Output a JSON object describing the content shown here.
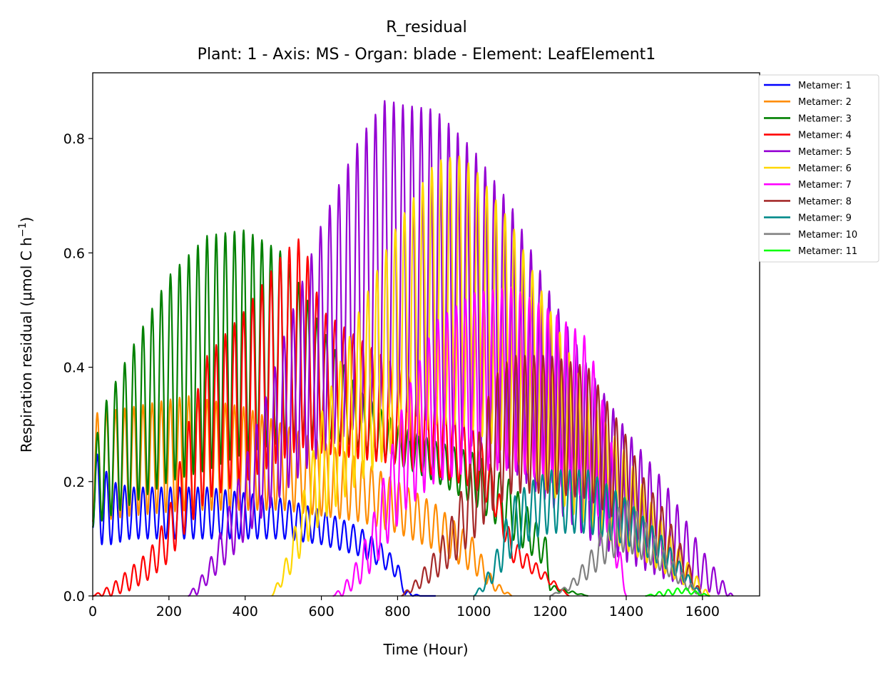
{
  "chart_data": {
    "type": "line",
    "title": "R_residual",
    "subtitle": "Plant: 1 - Axis: MS - Organ: blade - Element: LeafElement1",
    "xlabel": "Time (Hour)",
    "ylabel": "Respiration residual (µmol C h",
    "ylabel_sup": "−1",
    "ylabel_close": ")",
    "xlim": [
      0,
      1750
    ],
    "ylim": [
      0,
      0.915
    ],
    "xticks": [
      0,
      200,
      400,
      600,
      800,
      1000,
      1200,
      1400,
      1600
    ],
    "xtick_labels": [
      "0",
      "200",
      "400",
      "600",
      "800",
      "1000",
      "1200",
      "1400",
      "1600"
    ],
    "yticks": [
      0.0,
      0.2,
      0.4,
      0.6,
      0.8
    ],
    "ytick_labels": [
      "0.0",
      "0.2",
      "0.4",
      "0.6",
      "0.8"
    ],
    "grid": false,
    "legend_position": "outside-top-right",
    "period_hours": 24,
    "series": [
      {
        "name": "Metamer: 1",
        "color": "#0000ff",
        "x": [
          0,
          10,
          50,
          100,
          200,
          300,
          400,
          500,
          600,
          700,
          760,
          800,
          820,
          860,
          900
        ],
        "peak": [
          0.3,
          0.25,
          0.2,
          0.19,
          0.19,
          0.19,
          0.18,
          0.17,
          0.15,
          0.12,
          0.09,
          0.06,
          0.01,
          0.0,
          0.0
        ],
        "trough": [
          0.12,
          0.09,
          0.09,
          0.1,
          0.1,
          0.1,
          0.1,
          0.1,
          0.09,
          0.07,
          0.05,
          0.03,
          0.0,
          0.0,
          0.0
        ]
      },
      {
        "name": "Metamer: 2",
        "color": "#ff8c00",
        "x": [
          0,
          10,
          100,
          250,
          400,
          500,
          600,
          700,
          800,
          900,
          1000,
          1050,
          1100
        ],
        "peak": [
          0.31,
          0.32,
          0.33,
          0.35,
          0.33,
          0.3,
          0.27,
          0.24,
          0.2,
          0.16,
          0.1,
          0.03,
          0.0
        ],
        "trough": [
          0.13,
          0.13,
          0.14,
          0.15,
          0.15,
          0.15,
          0.14,
          0.13,
          0.11,
          0.08,
          0.04,
          0.01,
          0.0
        ]
      },
      {
        "name": "Metamer: 3",
        "color": "#008000",
        "x": [
          0,
          20,
          100,
          200,
          300,
          400,
          500,
          600,
          700,
          800,
          900,
          1000,
          1100,
          1190,
          1200,
          1300
        ],
        "peak": [
          0.23,
          0.32,
          0.43,
          0.56,
          0.63,
          0.64,
          0.6,
          0.47,
          0.36,
          0.3,
          0.27,
          0.25,
          0.2,
          0.1,
          0.02,
          0.0
        ],
        "trough": [
          0.12,
          0.13,
          0.16,
          0.2,
          0.22,
          0.25,
          0.27,
          0.28,
          0.26,
          0.23,
          0.2,
          0.16,
          0.1,
          0.05,
          0.01,
          0.0
        ]
      },
      {
        "name": "Metamer: 4",
        "color": "#ff0000",
        "x": [
          0,
          50,
          100,
          150,
          200,
          250,
          300,
          400,
          500,
          550,
          600,
          800,
          1000,
          1050,
          1100,
          1250
        ],
        "peak": [
          0.0,
          0.02,
          0.05,
          0.08,
          0.15,
          0.3,
          0.42,
          0.5,
          0.6,
          0.63,
          0.5,
          0.4,
          0.3,
          0.22,
          0.1,
          0.0
        ],
        "trough": [
          0.0,
          0.0,
          0.01,
          0.03,
          0.06,
          0.12,
          0.17,
          0.2,
          0.24,
          0.26,
          0.25,
          0.23,
          0.19,
          0.15,
          0.06,
          0.0
        ]
      },
      {
        "name": "Metamer: 5",
        "color": "#9400d3",
        "x": [
          250,
          270,
          300,
          340,
          380,
          420,
          460,
          500,
          600,
          700,
          770,
          800,
          900,
          1000,
          1100,
          1200,
          1300,
          1400,
          1500,
          1600,
          1660,
          1680
        ],
        "peak": [
          0.0,
          0.02,
          0.05,
          0.12,
          0.2,
          0.28,
          0.36,
          0.45,
          0.65,
          0.8,
          0.87,
          0.86,
          0.85,
          0.78,
          0.68,
          0.53,
          0.4,
          0.29,
          0.2,
          0.08,
          0.02,
          0.0
        ],
        "trough": [
          0.0,
          0.0,
          0.02,
          0.05,
          0.08,
          0.12,
          0.15,
          0.18,
          0.25,
          0.3,
          0.33,
          0.33,
          0.3,
          0.26,
          0.22,
          0.16,
          0.1,
          0.06,
          0.03,
          0.01,
          0.0,
          0.0
        ]
      },
      {
        "name": "Metamer: 6",
        "color": "#ffd700",
        "x": [
          470,
          500,
          530,
          560,
          600,
          700,
          800,
          900,
          960,
          1000,
          1100,
          1200,
          1300,
          1400,
          1500,
          1600,
          1620
        ],
        "peak": [
          0.0,
          0.05,
          0.12,
          0.2,
          0.32,
          0.5,
          0.65,
          0.76,
          0.77,
          0.75,
          0.65,
          0.5,
          0.35,
          0.25,
          0.12,
          0.02,
          0.0
        ],
        "trough": [
          0.0,
          0.02,
          0.05,
          0.09,
          0.13,
          0.2,
          0.26,
          0.3,
          0.3,
          0.29,
          0.24,
          0.18,
          0.12,
          0.08,
          0.04,
          0.0,
          0.0
        ]
      },
      {
        "name": "Metamer: 7",
        "color": "#ff00ff",
        "x": [
          630,
          660,
          700,
          740,
          780,
          820,
          900,
          1000,
          1100,
          1200,
          1300,
          1360,
          1380,
          1400
        ],
        "peak": [
          0.0,
          0.02,
          0.07,
          0.15,
          0.25,
          0.35,
          0.48,
          0.53,
          0.54,
          0.5,
          0.45,
          0.28,
          0.1,
          0.0
        ],
        "trough": [
          0.0,
          0.0,
          0.02,
          0.05,
          0.1,
          0.15,
          0.2,
          0.22,
          0.22,
          0.2,
          0.17,
          0.1,
          0.03,
          0.0
        ]
      },
      {
        "name": "Metamer: 8",
        "color": "#a52a2a",
        "x": [
          810,
          850,
          900,
          950,
          1000,
          1050,
          1100,
          1200,
          1300,
          1400,
          1450,
          1500,
          1550,
          1580,
          1600
        ],
        "peak": [
          0.0,
          0.03,
          0.08,
          0.15,
          0.25,
          0.38,
          0.42,
          0.42,
          0.4,
          0.28,
          0.2,
          0.15,
          0.08,
          0.03,
          0.0
        ],
        "trough": [
          0.0,
          0.01,
          0.03,
          0.06,
          0.1,
          0.15,
          0.18,
          0.18,
          0.17,
          0.12,
          0.09,
          0.06,
          0.03,
          0.01,
          0.0
        ]
      },
      {
        "name": "Metamer: 9",
        "color": "#008b8b",
        "x": [
          1000,
          1030,
          1060,
          1100,
          1150,
          1200,
          1300,
          1400,
          1500,
          1560,
          1600
        ],
        "peak": [
          0.0,
          0.03,
          0.08,
          0.17,
          0.2,
          0.22,
          0.22,
          0.17,
          0.1,
          0.04,
          0.0
        ],
        "trough": [
          0.0,
          0.01,
          0.03,
          0.07,
          0.1,
          0.11,
          0.11,
          0.09,
          0.05,
          0.02,
          0.0
        ]
      },
      {
        "name": "Metamer: 10",
        "color": "#808080",
        "x": [
          1200,
          1250,
          1300,
          1350,
          1400,
          1450,
          1500,
          1560,
          1600
        ],
        "peak": [
          0.0,
          0.02,
          0.07,
          0.13,
          0.17,
          0.13,
          0.08,
          0.03,
          0.0
        ],
        "trough": [
          0.0,
          0.01,
          0.03,
          0.06,
          0.08,
          0.06,
          0.04,
          0.01,
          0.0
        ]
      },
      {
        "name": "Metamer: 11",
        "color": "#00ff00",
        "x": [
          1450,
          1500,
          1550,
          1600,
          1620
        ],
        "peak": [
          0.0,
          0.01,
          0.015,
          0.005,
          0.0
        ],
        "trough": [
          0.0,
          0.0,
          0.005,
          0.0,
          0.0
        ]
      }
    ]
  }
}
